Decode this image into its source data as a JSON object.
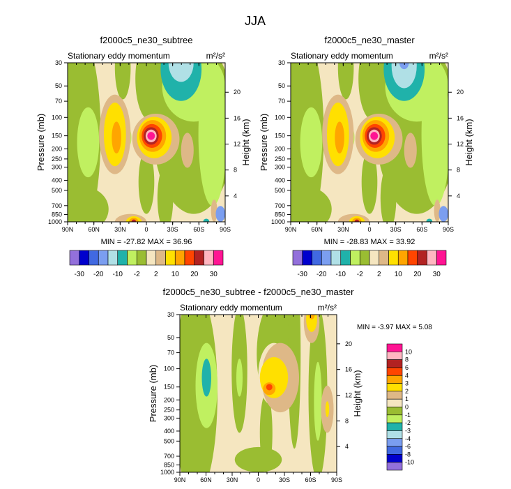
{
  "title": "JJA",
  "chart_data": {
    "type": "heatmap",
    "title": "JJA",
    "x_ticks": [
      "90N",
      "60N",
      "30N",
      "0",
      "30S",
      "60S",
      "90S"
    ],
    "xlim": [
      90,
      -90
    ],
    "y_ticks_pressure": [
      "30",
      "50",
      "70",
      "100",
      "150",
      "200",
      "250",
      "300",
      "400",
      "500",
      "700",
      "850",
      "1000"
    ],
    "ylim_pressure_mb": [
      1000,
      30
    ],
    "y_ticks_height": [
      "4",
      "8",
      "12",
      "16",
      "20"
    ],
    "ylabel_left": "Pressure (mb)",
    "ylabel_right": "Height (km)",
    "panels": [
      {
        "title": "f2000c5_ne30_subtree",
        "subtitle": "Stationary eddy momentum",
        "units": "m²/s²",
        "min_max": "MIN = -27.82  MAX =  36.96",
        "min": -27.82,
        "max": 36.96
      },
      {
        "title": "f2000c5_ne30_master",
        "subtitle": "Stationary eddy momentum",
        "units": "m²/s²",
        "min_max": "MIN = -28.83  MAX =  33.92",
        "min": -28.83,
        "max": 33.92
      },
      {
        "title": "f2000c5_ne30_subtree - f2000c5_ne30_master",
        "subtitle": "Stationary eddy momentum",
        "units": "m²/s²",
        "min_max": "MIN =  -3.97  MAX =   5.08",
        "min": -3.97,
        "max": 5.08
      }
    ],
    "colors": [
      "#9370DB",
      "#0000CD",
      "#4169E1",
      "#7B9EF0",
      "#B0E0E6",
      "#20B2AA",
      "#C0F060",
      "#9ABD32",
      "#F5E6C0",
      "#DEB887",
      "#FFE000",
      "#FFA500",
      "#FF4500",
      "#B22222",
      "#FFB6C1",
      "#FF1493"
    ],
    "colorbar_main_labels": [
      "-30",
      "-20",
      "-10",
      "-2",
      "2",
      "10",
      "20",
      "30"
    ],
    "colorbar_diff_labels": [
      "-10",
      "-8",
      "-6",
      "-4",
      "-3",
      "-2",
      "-1",
      "0",
      "1",
      "2",
      "3",
      "4",
      "6",
      "8",
      "10"
    ]
  }
}
